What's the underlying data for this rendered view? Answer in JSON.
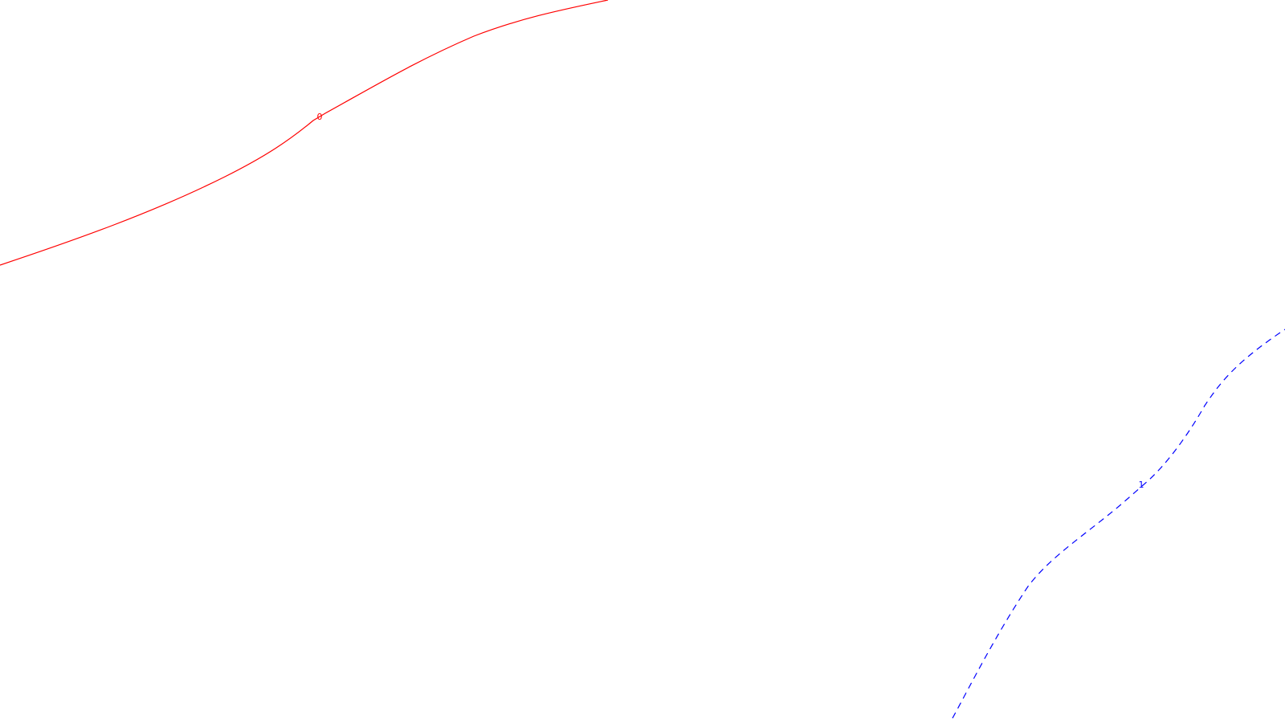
{
  "contours": [
    {
      "id": "contour-0",
      "label": "0",
      "color": "#ff0000",
      "style": "solid"
    },
    {
      "id": "contour-1",
      "label": "1",
      "color": "#0000ff",
      "style": "dashed"
    }
  ]
}
